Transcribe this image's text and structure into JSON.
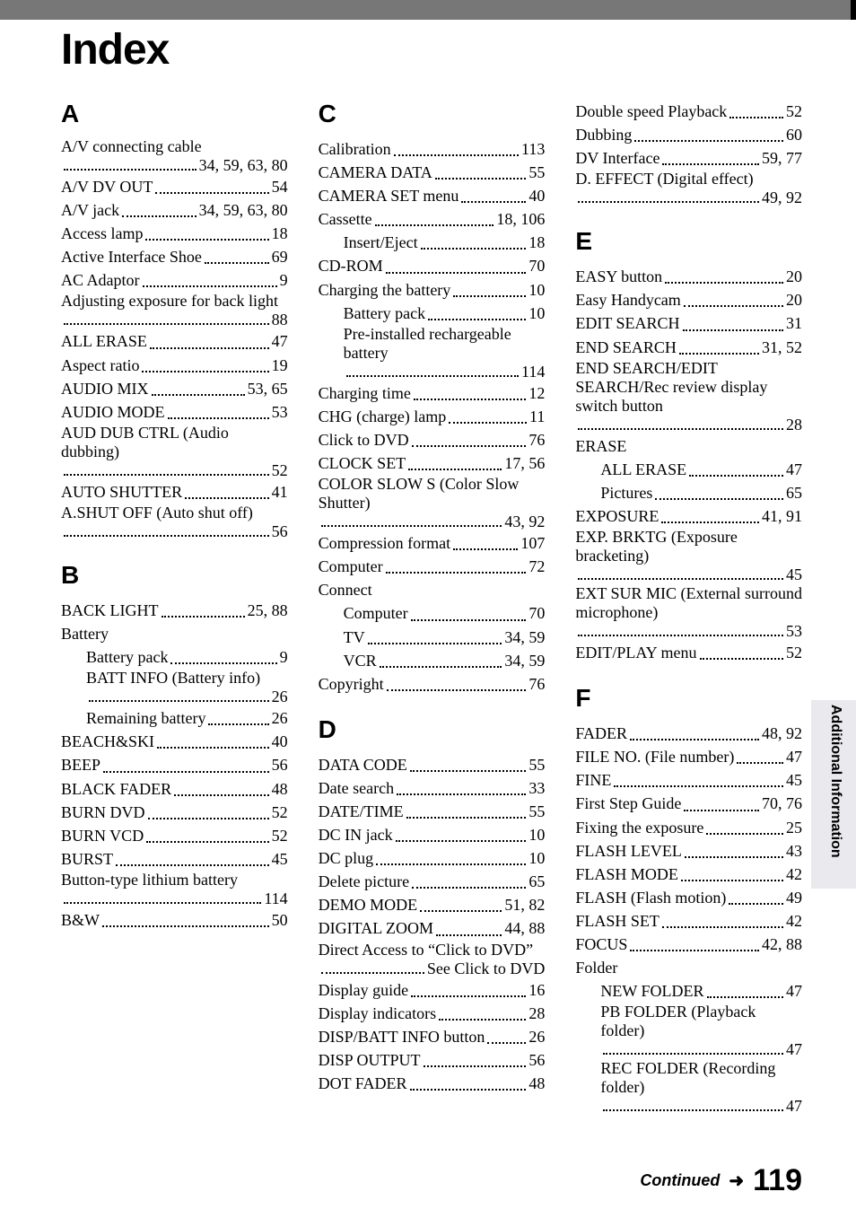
{
  "page": {
    "title": "Index",
    "side_label": "Additional Information",
    "continued": "Continued",
    "arrow": "➜",
    "page_number": "119"
  },
  "colors": {
    "topbar": "#777777",
    "side_tab_bg": "#e9e9ee",
    "text": "#000000",
    "background": "#ffffff"
  },
  "typography": {
    "body_family": "Times New Roman",
    "heading_family": "Arial",
    "title_size_pt": 36,
    "letter_size_pt": 21,
    "body_size_pt": 13
  },
  "sections": [
    {
      "letter": "A",
      "column": 0,
      "entries": [
        {
          "term": "A/V connecting cable",
          "page": "34, 59, 63, 80",
          "wrap": true
        },
        {
          "term": "A/V DV OUT",
          "page": "54"
        },
        {
          "term": "A/V jack",
          "page": "34, 59, 63, 80"
        },
        {
          "term": "Access lamp",
          "page": "18"
        },
        {
          "term": "Active Interface Shoe",
          "page": "69"
        },
        {
          "term": "AC Adaptor",
          "page": "9"
        },
        {
          "term": "Adjusting exposure for back light",
          "page": "88",
          "wrap": true
        },
        {
          "term": "ALL ERASE",
          "page": "47"
        },
        {
          "term": "Aspect ratio",
          "page": "19"
        },
        {
          "term": "AUDIO MIX",
          "page": "53, 65"
        },
        {
          "term": "AUDIO MODE",
          "page": "53"
        },
        {
          "term": "AUD DUB CTRL (Audio dubbing)",
          "page": "52",
          "wrap": true
        },
        {
          "term": "AUTO SHUTTER",
          "page": "41"
        },
        {
          "term": "A.SHUT OFF (Auto shut off)",
          "page": "56",
          "wrap": true
        }
      ]
    },
    {
      "letter": "B",
      "column": 0,
      "entries": [
        {
          "term": "BACK LIGHT",
          "page": "25, 88"
        },
        {
          "term": "Battery",
          "group": true
        },
        {
          "term": "Battery pack",
          "page": "9",
          "sub": true
        },
        {
          "term": "BATT INFO (Battery info)",
          "page": "26",
          "sub": true,
          "wrap": true
        },
        {
          "term": "Remaining battery",
          "page": "26",
          "sub": true
        },
        {
          "term": "BEACH&SKI",
          "page": "40"
        },
        {
          "term": "BEEP",
          "page": "56"
        },
        {
          "term": "BLACK FADER",
          "page": "48"
        },
        {
          "term": "BURN DVD",
          "page": "52"
        },
        {
          "term": "BURN VCD",
          "page": "52"
        },
        {
          "term": "BURST",
          "page": "45"
        },
        {
          "term": "Button-type lithium battery",
          "page": "114",
          "wrap": true
        },
        {
          "term": "B&W",
          "page": "50"
        }
      ]
    },
    {
      "letter": "C",
      "column": 1,
      "entries": [
        {
          "term": "Calibration",
          "page": "113"
        },
        {
          "term": "CAMERA DATA",
          "page": "55"
        },
        {
          "term": "CAMERA SET menu",
          "page": "40"
        },
        {
          "term": "Cassette",
          "page": "18, 106"
        },
        {
          "term": "Insert/Eject",
          "page": "18",
          "sub": true
        },
        {
          "term": "CD-ROM",
          "page": "70"
        },
        {
          "term": "Charging the battery",
          "page": "10"
        },
        {
          "term": "Battery pack",
          "page": "10",
          "sub": true
        },
        {
          "term": "Pre-installed rechargeable battery",
          "page": "114",
          "sub": true,
          "wrap": true
        },
        {
          "term": "Charging time",
          "page": "12"
        },
        {
          "term": "CHG (charge) lamp",
          "page": "11"
        },
        {
          "term": "Click to DVD",
          "page": "76"
        },
        {
          "term": "CLOCK SET",
          "page": "17, 56"
        },
        {
          "term": "COLOR SLOW S (Color Slow Shutter)",
          "page": "43, 92",
          "wrap": true
        },
        {
          "term": "Compression format",
          "page": "107"
        },
        {
          "term": "Computer",
          "page": "72"
        },
        {
          "term": "Connect",
          "group": true
        },
        {
          "term": "Computer",
          "page": "70",
          "sub": true
        },
        {
          "term": "TV",
          "page": "34, 59",
          "sub": true
        },
        {
          "term": "VCR",
          "page": "34, 59",
          "sub": true
        },
        {
          "term": "Copyright",
          "page": "76"
        }
      ]
    },
    {
      "letter": "D",
      "column": 1,
      "entries": [
        {
          "term": "DATA CODE",
          "page": "55"
        },
        {
          "term": "Date search",
          "page": "33"
        },
        {
          "term": "DATE/TIME",
          "page": "55"
        },
        {
          "term": "DC IN jack",
          "page": "10"
        },
        {
          "term": "DC plug",
          "page": "10"
        },
        {
          "term": "Delete picture",
          "page": "65"
        },
        {
          "term": "DEMO MODE",
          "page": "51, 82"
        },
        {
          "term": "DIGITAL ZOOM",
          "page": "44, 88"
        },
        {
          "term": "Direct Access to “Click to DVD”",
          "page": "See Click to DVD",
          "wrap": true
        },
        {
          "term": "Display guide",
          "page": "16"
        },
        {
          "term": "Display indicators",
          "page": "28"
        },
        {
          "term": "DISP/BATT INFO button",
          "page": "26"
        },
        {
          "term": "DISP OUTPUT",
          "page": "56"
        },
        {
          "term": "DOT FADER",
          "page": "48"
        }
      ]
    },
    {
      "letter": "D_cont",
      "column": 2,
      "hide_heading": true,
      "entries": [
        {
          "term": "Double speed Playback",
          "page": "52"
        },
        {
          "term": "Dubbing",
          "page": "60"
        },
        {
          "term": "DV Interface",
          "page": "59, 77"
        },
        {
          "term": "D. EFFECT (Digital effect)",
          "page": "49, 92",
          "wrap": true
        }
      ]
    },
    {
      "letter": "E",
      "column": 2,
      "entries": [
        {
          "term": "EASY button",
          "page": "20"
        },
        {
          "term": "Easy Handycam",
          "page": "20"
        },
        {
          "term": "EDIT SEARCH",
          "page": "31"
        },
        {
          "term": "END SEARCH",
          "page": "31, 52"
        },
        {
          "term": "END SEARCH/EDIT SEARCH/Rec review display switch button",
          "page": "28",
          "wrap": true
        },
        {
          "term": "ERASE",
          "group": true
        },
        {
          "term": "ALL ERASE",
          "page": "47",
          "sub": true
        },
        {
          "term": "Pictures",
          "page": "65",
          "sub": true
        },
        {
          "term": "EXPOSURE",
          "page": "41, 91"
        },
        {
          "term": "EXP. BRKTG (Exposure bracketing)",
          "page": "45",
          "wrap": true
        },
        {
          "term": "EXT SUR MIC (External surround microphone)",
          "page": "53",
          "wrap": true
        },
        {
          "term": "EDIT/PLAY menu",
          "page": "52"
        }
      ]
    },
    {
      "letter": "F",
      "column": 2,
      "entries": [
        {
          "term": "FADER",
          "page": "48, 92"
        },
        {
          "term": "FILE NO. (File number)",
          "page": "47"
        },
        {
          "term": "FINE",
          "page": "45"
        },
        {
          "term": "First Step Guide",
          "page": "70, 76"
        },
        {
          "term": "Fixing the exposure",
          "page": "25"
        },
        {
          "term": "FLASH LEVEL",
          "page": "43"
        },
        {
          "term": "FLASH MODE",
          "page": "42"
        },
        {
          "term": "FLASH (Flash motion)",
          "page": "49"
        },
        {
          "term": "FLASH SET",
          "page": "42"
        },
        {
          "term": "FOCUS",
          "page": "42, 88"
        },
        {
          "term": "Folder",
          "group": true
        },
        {
          "term": "NEW FOLDER",
          "page": "47",
          "sub": true
        },
        {
          "term": "PB FOLDER (Playback folder)",
          "page": "47",
          "sub": true,
          "wrap": true
        },
        {
          "term": "REC FOLDER (Recording folder)",
          "page": "47",
          "sub": true,
          "wrap": true
        }
      ]
    }
  ]
}
